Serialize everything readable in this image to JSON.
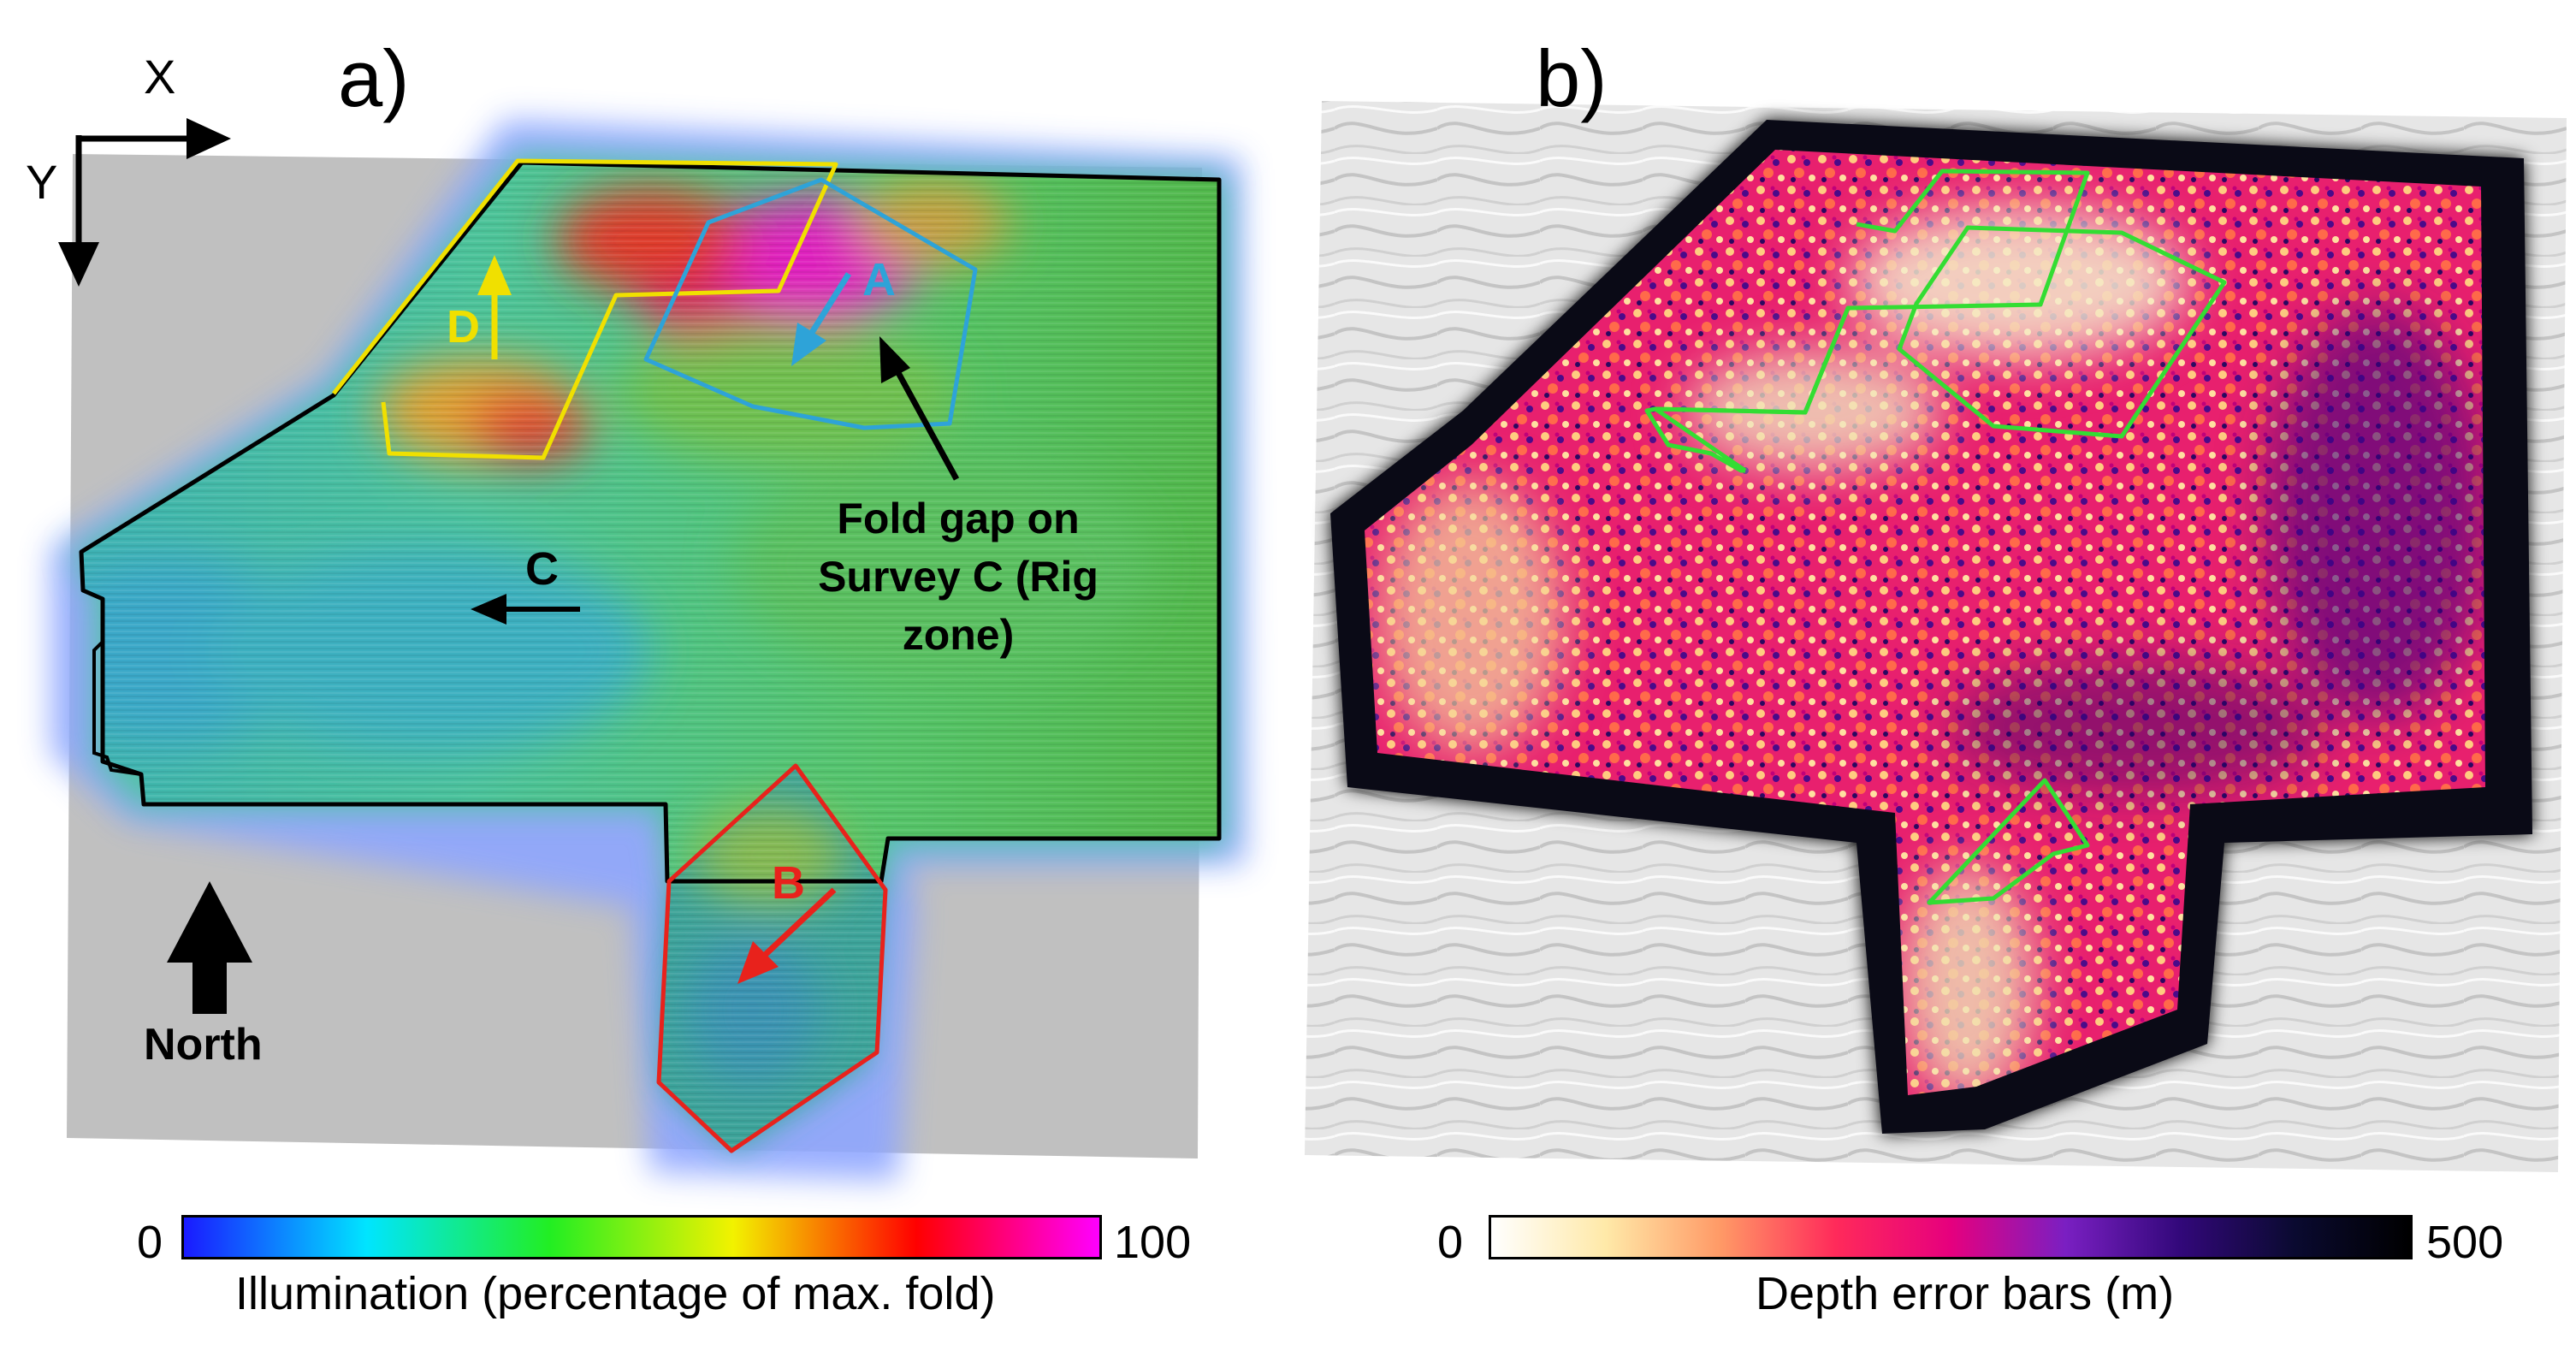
{
  "panel_a": {
    "label": "a)",
    "axis_x": "X",
    "axis_y": "Y",
    "survey_labels": {
      "A": "A",
      "B": "B",
      "C": "C",
      "D": "D"
    },
    "annotation_lines": [
      "Fold gap on",
      "Survey C (Rig",
      "zone)"
    ],
    "north_label": "North",
    "colorbar": {
      "min": "0",
      "max": "100",
      "title": "Illumination (percentage of max. fold)",
      "stops": [
        "#1a1aff",
        "#00e5ff",
        "#22ee22",
        "#f2f200",
        "#ff0000",
        "#ff00ff"
      ]
    },
    "colors": {
      "A": "#2ea3d8",
      "B": "#e8221c",
      "C": "#000000",
      "D": "#f0e000"
    }
  },
  "panel_b": {
    "label": "b)",
    "colorbar": {
      "min": "0",
      "max": "500",
      "title": "Depth error bars (m)",
      "stops": [
        "#ffffff",
        "#ffe9a8",
        "#ff9966",
        "#ff2a5a",
        "#e6007e",
        "#7a1fc2",
        "#32087a",
        "#0a0a30",
        "#000000"
      ]
    },
    "outline_color": "#33dd33"
  }
}
